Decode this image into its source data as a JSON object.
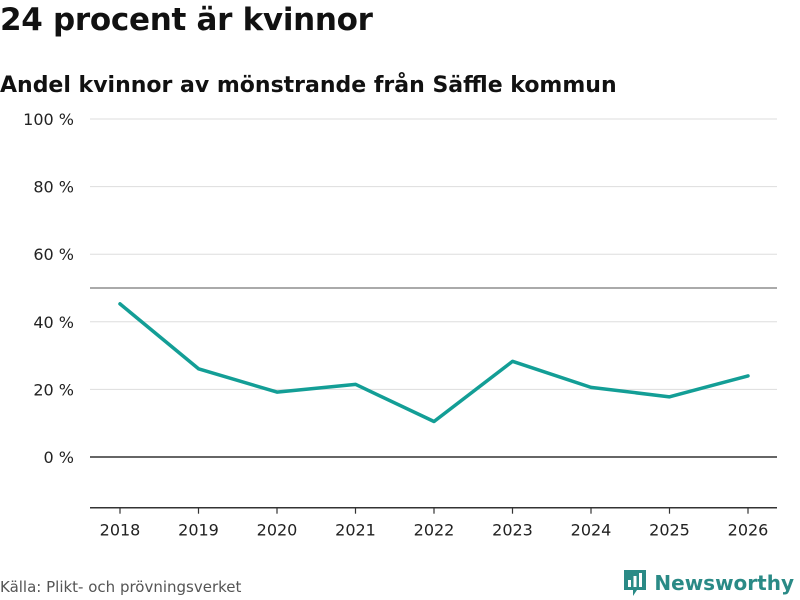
{
  "header": {
    "title": "24 procent är kvinnor",
    "subtitle": "Andel kvinnor av mönstrande från Säffle kommun"
  },
  "footer": {
    "source": "Källa: Plikt- och prövningsverket",
    "brand": "Newsworthy"
  },
  "colors": {
    "line": "#139e96",
    "grid": "#dddddd",
    "reference": "#777777",
    "zero": "#333333",
    "brand": "#2a8a86"
  },
  "chart_data": {
    "type": "line",
    "title": "24 procent är kvinnor",
    "subtitle": "Andel kvinnor av mönstrande från Säffle kommun",
    "xlabel": "",
    "ylabel": "",
    "x": [
      "2018",
      "2019",
      "2020",
      "2021",
      "2022",
      "2023",
      "2024",
      "2025",
      "2026"
    ],
    "series": [
      {
        "name": "Andel kvinnor",
        "values": [
          45.3,
          26.1,
          19.2,
          21.5,
          10.5,
          28.3,
          20.6,
          17.8,
          24.0
        ]
      }
    ],
    "ylim": [
      -15,
      100
    ],
    "yticks": [
      0,
      20,
      40,
      60,
      80,
      100
    ],
    "ytick_labels": [
      "0 %",
      "20 %",
      "40 %",
      "60 %",
      "80 %",
      "100 %"
    ],
    "reference_line": 50,
    "grid": true
  }
}
